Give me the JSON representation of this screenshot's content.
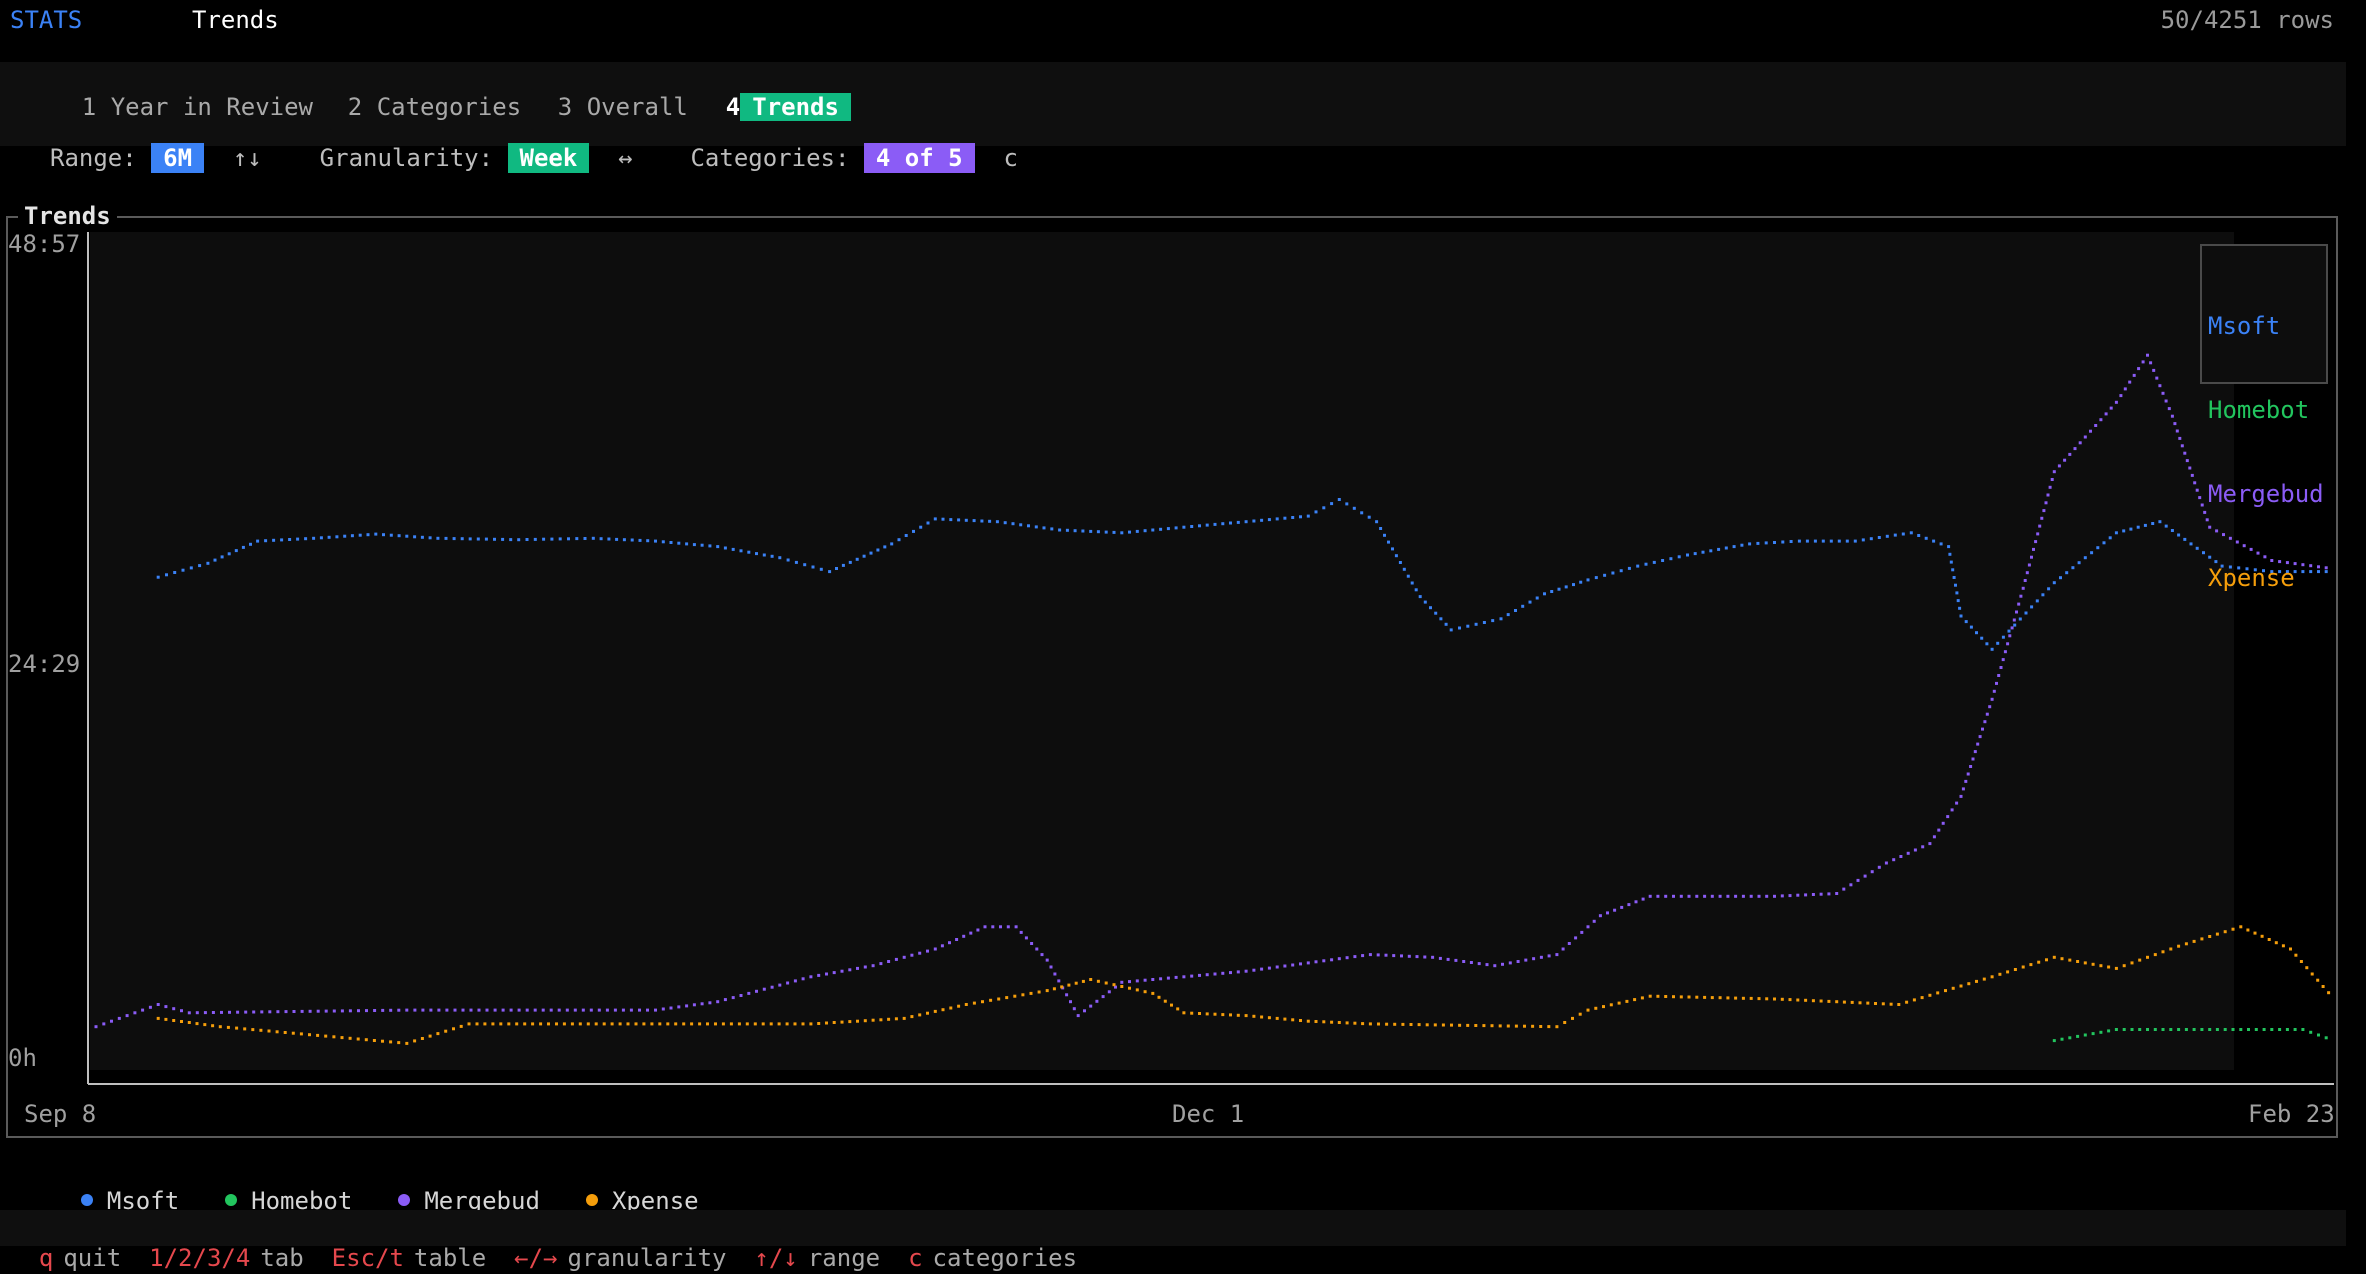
{
  "header": {
    "app": "STATS",
    "view": "Trends",
    "rows": "50/4251 rows"
  },
  "tabs": [
    {
      "num": "1",
      "label": "Year in Review",
      "active": false
    },
    {
      "num": "2",
      "label": "Categories",
      "active": false
    },
    {
      "num": "3",
      "label": "Overall",
      "active": false
    },
    {
      "num": "4",
      "label": "Trends",
      "active": true
    }
  ],
  "controls": {
    "range_label": "Range:",
    "range_value": "6M",
    "range_hint": "↑↓",
    "granularity_label": "Granularity:",
    "granularity_value": "Week",
    "granularity_hint": "↔",
    "categories_label": "Categories:",
    "categories_value": "4 of 5",
    "categories_hint": "c"
  },
  "panel_title": "Trends",
  "help": [
    {
      "key": "q",
      "label": "quit"
    },
    {
      "key": "1/2/3/4",
      "label": "tab"
    },
    {
      "key": "Esc/t",
      "label": "table"
    },
    {
      "key": "←/→",
      "label": "granularity"
    },
    {
      "key": "↑/↓",
      "label": "range"
    },
    {
      "key": "c",
      "label": "categories"
    }
  ],
  "chart_data": {
    "type": "line",
    "title": "",
    "xlabel": "",
    "ylabel": "",
    "x_ticks": [
      "Sep 8",
      "Dec 1",
      "Feb 23"
    ],
    "y_ticks": [
      "48:57",
      "24:29",
      "0h"
    ],
    "ylim_minutes": [
      0,
      2937
    ],
    "x_weeks": 24,
    "legend_placement": "top-right",
    "series": [
      {
        "name": "Msoft",
        "color": "#3b82f6",
        "points": [
          [
            1,
            1740
          ],
          [
            1.8,
            1790
          ],
          [
            2.6,
            1870
          ],
          [
            3.5,
            1880
          ],
          [
            4.5,
            1895
          ],
          [
            5.5,
            1880
          ],
          [
            6.8,
            1875
          ],
          [
            8,
            1880
          ],
          [
            9,
            1870
          ],
          [
            10,
            1850
          ],
          [
            11,
            1810
          ],
          [
            11.8,
            1760
          ],
          [
            12.8,
            1860
          ],
          [
            13.5,
            1950
          ],
          [
            14.5,
            1940
          ],
          [
            15.5,
            1910
          ],
          [
            16.5,
            1900
          ],
          [
            17.5,
            1920
          ],
          [
            18.5,
            1940
          ],
          [
            19.5,
            1960
          ],
          [
            20,
            2020
          ],
          [
            20.6,
            1940
          ],
          [
            21.3,
            1670
          ],
          [
            21.8,
            1550
          ],
          [
            22.6,
            1590
          ],
          [
            23.3,
            1680
          ],
          [
            24,
            1730
          ],
          [
            24.8,
            1780
          ],
          [
            25.6,
            1820
          ],
          [
            26.6,
            1860
          ],
          [
            27.4,
            1870
          ],
          [
            28.3,
            1870
          ],
          [
            29.2,
            1900
          ],
          [
            29.8,
            1850
          ],
          [
            30,
            1600
          ],
          [
            30.5,
            1480
          ],
          [
            31.5,
            1720
          ],
          [
            32.5,
            1900
          ],
          [
            33.2,
            1940
          ],
          [
            34.2,
            1780
          ],
          [
            35,
            1760
          ],
          [
            36,
            1760
          ]
        ]
      },
      {
        "name": "Homebot",
        "color": "#22c55e",
        "points": [
          [
            31.5,
            70
          ],
          [
            32.5,
            110
          ],
          [
            33.5,
            110
          ],
          [
            34.5,
            110
          ],
          [
            35.5,
            110
          ],
          [
            36,
            70
          ]
        ]
      },
      {
        "name": "Mergebud",
        "color": "#8b5cf6",
        "points": [
          [
            0,
            120
          ],
          [
            1,
            200
          ],
          [
            1.5,
            170
          ],
          [
            5,
            180
          ],
          [
            9,
            180
          ],
          [
            10,
            210
          ],
          [
            11.5,
            300
          ],
          [
            12.5,
            340
          ],
          [
            13.5,
            400
          ],
          [
            14.3,
            480
          ],
          [
            14.8,
            480
          ],
          [
            15.3,
            360
          ],
          [
            15.8,
            160
          ],
          [
            16.5,
            280
          ],
          [
            17.5,
            300
          ],
          [
            18.5,
            320
          ],
          [
            19.5,
            350
          ],
          [
            20.5,
            380
          ],
          [
            21.5,
            370
          ],
          [
            22.5,
            340
          ],
          [
            23.5,
            380
          ],
          [
            24.2,
            520
          ],
          [
            25,
            590
          ],
          [
            26,
            590
          ],
          [
            27,
            590
          ],
          [
            28,
            600
          ],
          [
            28.8,
            710
          ],
          [
            29.5,
            780
          ],
          [
            30,
            950
          ],
          [
            30.5,
            1300
          ],
          [
            31,
            1700
          ],
          [
            31.5,
            2120
          ],
          [
            32.5,
            2370
          ],
          [
            33,
            2540
          ],
          [
            33.4,
            2320
          ],
          [
            34,
            1920
          ],
          [
            35,
            1800
          ],
          [
            36,
            1770
          ]
        ]
      },
      {
        "name": "Xpense",
        "color": "#f59e0b",
        "points": [
          [
            1,
            150
          ],
          [
            2,
            120
          ],
          [
            5,
            60
          ],
          [
            6,
            130
          ],
          [
            11.5,
            130
          ],
          [
            13,
            150
          ],
          [
            14,
            200
          ],
          [
            15.3,
            250
          ],
          [
            16,
            290
          ],
          [
            17,
            240
          ],
          [
            17.5,
            170
          ],
          [
            18.5,
            160
          ],
          [
            19.5,
            140
          ],
          [
            20.5,
            130
          ],
          [
            23.5,
            120
          ],
          [
            24,
            180
          ],
          [
            25,
            230
          ],
          [
            27,
            220
          ],
          [
            28,
            210
          ],
          [
            29,
            200
          ],
          [
            30.5,
            300
          ],
          [
            31.5,
            370
          ],
          [
            32.5,
            330
          ],
          [
            33.5,
            410
          ],
          [
            34.5,
            480
          ],
          [
            35.3,
            400
          ],
          [
            36,
            220
          ]
        ]
      }
    ]
  }
}
